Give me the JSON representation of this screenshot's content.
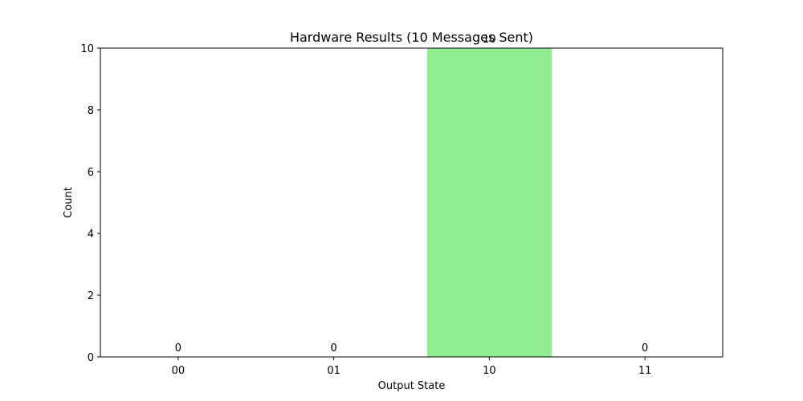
{
  "chart_data": {
    "type": "bar",
    "title": "Hardware Results (10 Messages Sent)",
    "xlabel": "Output State",
    "ylabel": "Count",
    "categories": [
      "00",
      "01",
      "10",
      "11"
    ],
    "values": [
      0,
      0,
      10,
      0
    ],
    "data_labels": [
      "0",
      "0",
      "10",
      "0"
    ],
    "ylim": [
      0,
      10
    ],
    "yticks": [
      0,
      2,
      4,
      6,
      8,
      10
    ],
    "bar_color": "#90ee90",
    "grid": false,
    "legend": "none"
  }
}
